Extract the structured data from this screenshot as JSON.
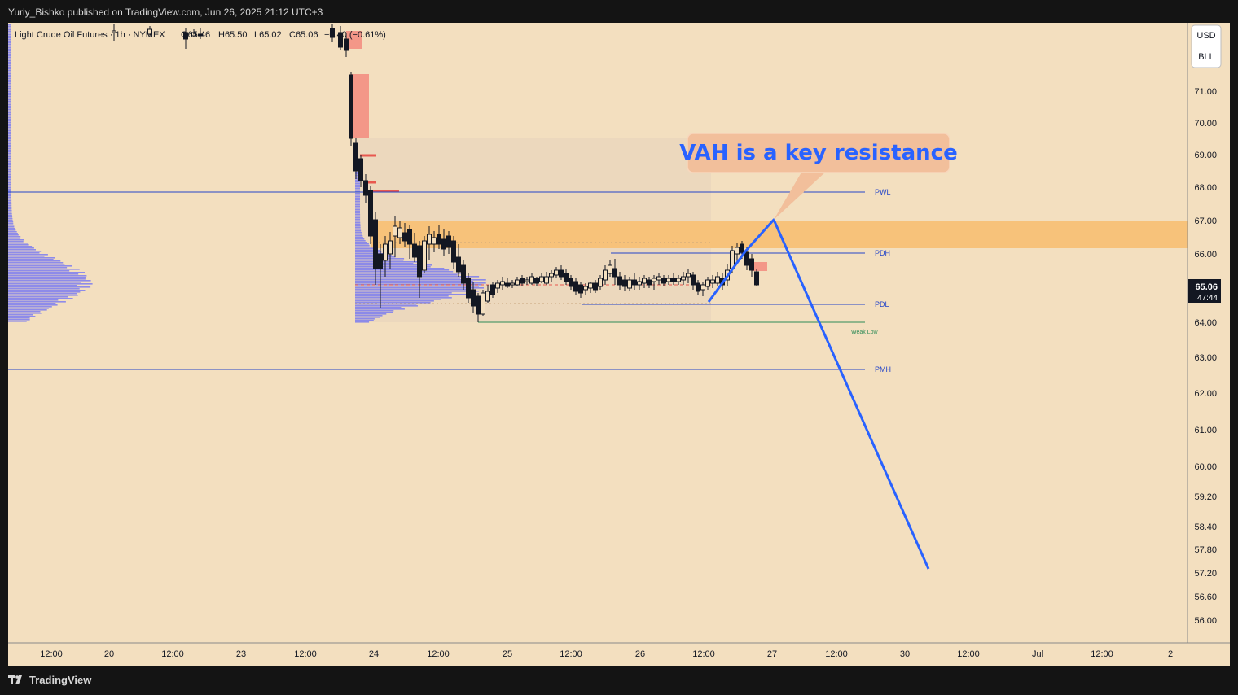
{
  "header": {
    "publisher": "Yuriy_Bishko published on TradingView.com, Jun 26, 2025 21:12 UTC+3"
  },
  "symbol": {
    "name": "Light Crude Oil Futures · 1h · NYMEX",
    "open": "O65.46",
    "high": "H65.50",
    "low": "L65.02",
    "close": "C65.06",
    "change": "−0.40 (−0.61%)"
  },
  "currency": {
    "code": "USD",
    "unit": "BLL"
  },
  "price_axis": {
    "ticks": [
      "71.00",
      "70.00",
      "69.00",
      "68.00",
      "67.00",
      "66.00",
      "64.00",
      "63.00",
      "62.00",
      "61.00",
      "60.00",
      "59.20",
      "58.40",
      "57.80",
      "57.20",
      "56.60",
      "56.00"
    ],
    "current_price": "65.06",
    "countdown": "47:44"
  },
  "time_axis": {
    "ticks": [
      "12:00",
      "20",
      "12:00",
      "23",
      "12:00",
      "24",
      "12:00",
      "25",
      "12:00",
      "26",
      "12:00",
      "27",
      "12:00",
      "30",
      "12:00",
      "Jul",
      "12:00",
      "2"
    ]
  },
  "levels": {
    "pwl": "PWL",
    "pdh": "PDH",
    "pdl": "PDL",
    "pmh": "PMH",
    "weak_low": "Weak Low"
  },
  "annotation": {
    "callout": "VAH is a key resistance"
  },
  "colors": {
    "background": "#f3dfbf",
    "level_line": "#2445c9",
    "projection": "#2962ff",
    "vah_zone": "#f7c27a",
    "supply_zone": "#f28b7e",
    "volume_profile": "#7b7df0",
    "callout_bg": "#f2bf9b",
    "callout_text": "#2962ff",
    "weak_low": "#2e8b57"
  },
  "footer": {
    "brand": "TradingView",
    "logo_icon": "tradingview-logo-icon"
  }
}
